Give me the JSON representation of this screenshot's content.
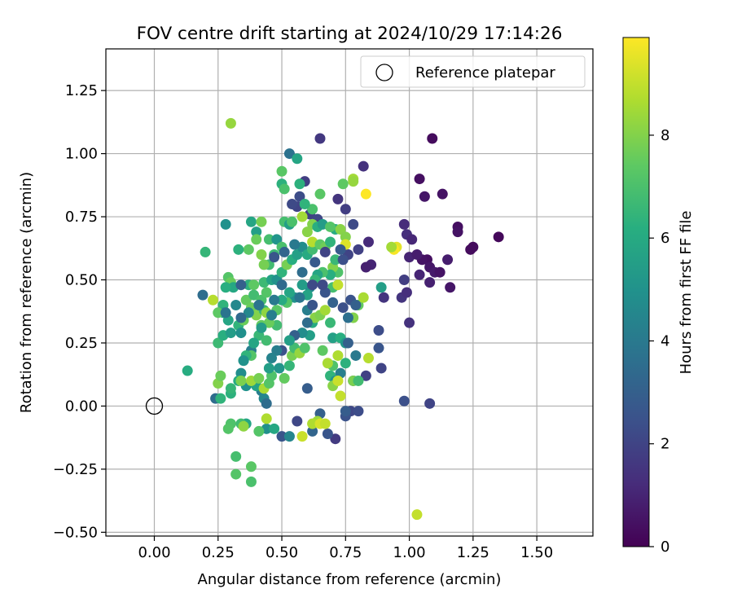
{
  "chart_data": {
    "type": "scatter",
    "title": "FOV centre drift starting at 2024/10/29 17:14:26",
    "xlabel": "Angular distance from reference (arcmin)",
    "ylabel": "Rotation from reference (arcmin)",
    "xlim": [
      -0.19,
      1.72
    ],
    "ylim": [
      -0.515,
      1.415
    ],
    "xticks": [
      0.0,
      0.25,
      0.5,
      0.75,
      1.0,
      1.25,
      1.5
    ],
    "xtick_labels": [
      "0.00",
      "0.25",
      "0.50",
      "0.75",
      "1.00",
      "1.25",
      "1.50"
    ],
    "yticks": [
      -0.5,
      -0.25,
      0.0,
      0.25,
      0.5,
      0.75,
      1.0,
      1.25
    ],
    "ytick_labels": [
      "−0.50",
      "−0.25",
      "0.00",
      "0.25",
      "0.50",
      "0.75",
      "1.00",
      "1.25"
    ],
    "grid": true,
    "legend": {
      "placement": "top-right",
      "entries": [
        "Reference platepar"
      ]
    },
    "reference_point": {
      "x": 0.0,
      "y": 0.0
    },
    "colorbar": {
      "label": "Hours from first FF file",
      "colormap": "viridis",
      "range": [
        0,
        9.9
      ],
      "ticks": [
        0,
        2,
        4,
        6,
        8
      ],
      "tick_labels": [
        "0",
        "2",
        "4",
        "6",
        "8"
      ]
    },
    "points": [
      [
        1.09,
        1.06,
        0.3
      ],
      [
        1.13,
        0.84,
        0.5
      ],
      [
        1.06,
        0.83,
        0.6
      ],
      [
        1.04,
        0.9,
        0.4
      ],
      [
        1.35,
        0.67,
        0.2
      ],
      [
        1.25,
        0.63,
        0.3
      ],
      [
        1.24,
        0.62,
        0.3
      ],
      [
        1.19,
        0.71,
        0.4
      ],
      [
        1.19,
        0.69,
        0.5
      ],
      [
        1.07,
        0.58,
        0.4
      ],
      [
        1.05,
        0.58,
        0.5
      ],
      [
        1.08,
        0.55,
        0.6
      ],
      [
        1.1,
        0.53,
        0.7
      ],
      [
        1.12,
        0.53,
        0.5
      ],
      [
        1.15,
        0.58,
        0.8
      ],
      [
        1.16,
        0.47,
        0.6
      ],
      [
        1.08,
        0.49,
        0.9
      ],
      [
        1.04,
        0.52,
        1.0
      ],
      [
        1.0,
        0.59,
        1.0
      ],
      [
        1.03,
        0.6,
        0.8
      ],
      [
        0.98,
        0.72,
        1.2
      ],
      [
        0.99,
        0.68,
        1.3
      ],
      [
        1.01,
        0.66,
        1.1
      ],
      [
        0.97,
        0.43,
        1.5
      ],
      [
        0.99,
        0.45,
        1.3
      ],
      [
        0.98,
        0.5,
        1.8
      ],
      [
        0.9,
        0.43,
        1.5
      ],
      [
        0.85,
        0.56,
        1.0
      ],
      [
        0.83,
        0.55,
        0.9
      ],
      [
        0.84,
        0.65,
        1.2
      ],
      [
        0.82,
        0.95,
        1.4
      ],
      [
        0.72,
        0.82,
        1.5
      ],
      [
        0.75,
        0.78,
        1.8
      ],
      [
        0.78,
        0.72,
        2.2
      ],
      [
        0.8,
        0.62,
        1.9
      ],
      [
        0.76,
        0.6,
        2.0
      ],
      [
        0.65,
        1.06,
        1.6
      ],
      [
        0.59,
        0.89,
        1.8
      ],
      [
        0.61,
        0.76,
        1.9
      ],
      [
        0.64,
        0.74,
        2.1
      ],
      [
        0.56,
        0.79,
        2.0
      ],
      [
        0.57,
        0.83,
        2.3
      ],
      [
        0.54,
        0.8,
        2.2
      ],
      [
        0.53,
        1.0,
        3.7
      ],
      [
        0.56,
        0.98,
        5.8
      ],
      [
        1.0,
        0.33,
        1.4
      ],
      [
        1.08,
        0.01,
        2.0
      ],
      [
        0.98,
        0.02,
        2.4
      ],
      [
        0.88,
        0.3,
        2.3
      ],
      [
        0.88,
        0.23,
        2.6
      ],
      [
        0.89,
        0.15,
        2.0
      ],
      [
        0.83,
        0.12,
        1.9
      ],
      [
        0.78,
        0.1,
        2.2
      ],
      [
        0.77,
        -0.02,
        2.1
      ],
      [
        0.8,
        -0.02,
        2.3
      ],
      [
        0.75,
        -0.04,
        2.5
      ],
      [
        0.75,
        -0.02,
        2.9
      ],
      [
        0.71,
        -0.13,
        1.7
      ],
      [
        0.68,
        -0.11,
        2.6
      ],
      [
        0.65,
        -0.03,
        3.0
      ],
      [
        0.6,
        0.07,
        2.9
      ],
      [
        0.62,
        -0.1,
        3.2
      ],
      [
        0.56,
        -0.06,
        2.1
      ],
      [
        0.5,
        -0.12,
        2.6
      ],
      [
        0.53,
        -0.12,
        4.5
      ],
      [
        0.44,
        -0.09,
        4.9
      ],
      [
        0.44,
        -0.05,
        8.7
      ],
      [
        0.42,
        0.06,
        4.2
      ],
      [
        0.43,
        0.03,
        4.5
      ],
      [
        0.44,
        0.01,
        3.5
      ],
      [
        0.4,
        0.08,
        5.7
      ],
      [
        0.38,
        0.22,
        4.2
      ],
      [
        0.36,
        0.08,
        5.0
      ],
      [
        0.34,
        0.13,
        4.8
      ],
      [
        0.35,
        0.18,
        5.8
      ],
      [
        0.33,
        0.1,
        6.0
      ],
      [
        0.3,
        0.05,
        6.3
      ],
      [
        0.3,
        0.07,
        6.5
      ],
      [
        0.24,
        0.03,
        3.5
      ],
      [
        0.26,
        0.03,
        6.4
      ],
      [
        0.25,
        0.09,
        8.0
      ],
      [
        0.26,
        0.12,
        7.6
      ],
      [
        0.13,
        0.14,
        6.1
      ],
      [
        0.3,
        -0.07,
        7.1
      ],
      [
        0.29,
        -0.09,
        7.2
      ],
      [
        0.32,
        -0.2,
        6.9
      ],
      [
        0.32,
        -0.27,
        7.2
      ],
      [
        0.38,
        -0.24,
        7.3
      ],
      [
        0.38,
        -0.3,
        7.0
      ],
      [
        0.36,
        -0.07,
        5.8
      ],
      [
        0.34,
        -0.07,
        6.8
      ],
      [
        0.35,
        -0.08,
        8.2
      ],
      [
        0.41,
        -0.1,
        7.2
      ],
      [
        0.47,
        -0.09,
        5.9
      ],
      [
        0.64,
        -0.06,
        8.4
      ],
      [
        0.62,
        -0.07,
        8.7
      ],
      [
        0.65,
        -0.07,
        9.3
      ],
      [
        0.67,
        -0.07,
        9.0
      ],
      [
        0.58,
        -0.12,
        9.1
      ],
      [
        1.03,
        -0.43,
        9.0
      ],
      [
        0.3,
        1.12,
        8.3
      ],
      [
        0.2,
        0.61,
        6.5
      ],
      [
        0.19,
        0.44,
        3.5
      ],
      [
        0.23,
        0.42,
        8.8
      ],
      [
        0.28,
        0.72,
        5.0
      ],
      [
        0.38,
        0.73,
        5.8
      ],
      [
        0.42,
        0.73,
        7.8
      ],
      [
        0.4,
        0.69,
        5.5
      ],
      [
        0.4,
        0.66,
        7.6
      ],
      [
        0.45,
        0.66,
        6.9
      ],
      [
        0.48,
        0.66,
        5.1
      ],
      [
        0.51,
        0.73,
        6.9
      ],
      [
        0.53,
        0.72,
        5.5
      ],
      [
        0.47,
        0.6,
        6.7
      ],
      [
        0.5,
        0.63,
        7.0
      ],
      [
        0.45,
        0.56,
        6.8
      ],
      [
        0.43,
        0.56,
        7.8
      ],
      [
        0.42,
        0.6,
        8.0
      ],
      [
        0.37,
        0.62,
        7.4
      ],
      [
        0.33,
        0.62,
        6.3
      ],
      [
        0.29,
        0.51,
        7.2
      ],
      [
        0.3,
        0.49,
        7.6
      ],
      [
        0.31,
        0.47,
        5.9
      ],
      [
        0.28,
        0.47,
        6.2
      ],
      [
        0.27,
        0.4,
        6.4
      ],
      [
        0.27,
        0.37,
        5.8
      ],
      [
        0.25,
        0.37,
        7.4
      ],
      [
        0.25,
        0.25,
        6.7
      ],
      [
        0.27,
        0.28,
        6.2
      ],
      [
        0.3,
        0.29,
        5.4
      ],
      [
        0.29,
        0.34,
        5.8
      ],
      [
        0.33,
        0.32,
        6.4
      ],
      [
        0.34,
        0.29,
        4.9
      ],
      [
        0.35,
        0.34,
        7.6
      ],
      [
        0.36,
        0.42,
        7.5
      ],
      [
        0.37,
        0.48,
        6.3
      ],
      [
        0.39,
        0.48,
        7.4
      ],
      [
        0.39,
        0.44,
        6.8
      ],
      [
        0.38,
        0.39,
        7.6
      ],
      [
        0.4,
        0.36,
        8.0
      ],
      [
        0.42,
        0.42,
        7.0
      ],
      [
        0.43,
        0.38,
        6.5
      ],
      [
        0.44,
        0.45,
        7.2
      ],
      [
        0.43,
        0.49,
        6.7
      ],
      [
        0.46,
        0.5,
        5.7
      ],
      [
        0.48,
        0.5,
        5.0
      ],
      [
        0.5,
        0.53,
        6.4
      ],
      [
        0.52,
        0.56,
        7.8
      ],
      [
        0.54,
        0.58,
        6.2
      ],
      [
        0.56,
        0.6,
        5.6
      ],
      [
        0.58,
        0.63,
        4.8
      ],
      [
        0.6,
        0.6,
        6.0
      ],
      [
        0.62,
        0.62,
        6.8
      ],
      [
        0.62,
        0.65,
        8.8
      ],
      [
        0.6,
        0.69,
        8.1
      ],
      [
        0.65,
        0.64,
        7.4
      ],
      [
        0.67,
        0.63,
        7.7
      ],
      [
        0.69,
        0.65,
        6.4
      ],
      [
        0.71,
        0.7,
        6.1
      ],
      [
        0.73,
        0.7,
        8.1
      ],
      [
        0.75,
        0.67,
        8.0
      ],
      [
        0.75,
        0.64,
        9.4
      ],
      [
        0.72,
        0.53,
        7.1
      ],
      [
        0.7,
        0.55,
        8.0
      ],
      [
        0.7,
        0.47,
        6.9
      ],
      [
        0.72,
        0.48,
        9.0
      ],
      [
        0.71,
        0.58,
        6.6
      ],
      [
        0.69,
        0.52,
        6.2
      ],
      [
        0.66,
        0.53,
        7.0
      ],
      [
        0.64,
        0.52,
        5.8
      ],
      [
        0.63,
        0.5,
        6.5
      ],
      [
        0.61,
        0.47,
        4.8
      ],
      [
        0.6,
        0.44,
        5.7
      ],
      [
        0.58,
        0.48,
        5.4
      ],
      [
        0.57,
        0.43,
        6.1
      ],
      [
        0.55,
        0.43,
        5.0
      ],
      [
        0.53,
        0.45,
        5.8
      ],
      [
        0.52,
        0.41,
        7.2
      ],
      [
        0.5,
        0.42,
        6.0
      ],
      [
        0.48,
        0.38,
        7.3
      ],
      [
        0.48,
        0.32,
        6.8
      ],
      [
        0.45,
        0.33,
        7.6
      ],
      [
        0.44,
        0.37,
        8.2
      ],
      [
        0.42,
        0.32,
        7.5
      ],
      [
        0.41,
        0.28,
        6.6
      ],
      [
        0.39,
        0.25,
        5.8
      ],
      [
        0.38,
        0.2,
        7.2
      ],
      [
        0.36,
        0.2,
        6.4
      ],
      [
        0.35,
        0.18,
        5.0
      ],
      [
        0.34,
        0.1,
        7.9
      ],
      [
        0.38,
        0.1,
        8.4
      ],
      [
        0.41,
        0.11,
        7.8
      ],
      [
        0.43,
        0.07,
        8.6
      ],
      [
        0.45,
        0.09,
        7.2
      ],
      [
        0.46,
        0.12,
        7.1
      ],
      [
        0.49,
        0.15,
        5.1
      ],
      [
        0.51,
        0.11,
        7.5
      ],
      [
        0.53,
        0.16,
        6.5
      ],
      [
        0.54,
        0.2,
        7.8
      ],
      [
        0.55,
        0.23,
        6.8
      ],
      [
        0.57,
        0.21,
        8.3
      ],
      [
        0.59,
        0.23,
        7.1
      ],
      [
        0.61,
        0.28,
        5.5
      ],
      [
        0.62,
        0.33,
        6.0
      ],
      [
        0.63,
        0.35,
        8.1
      ],
      [
        0.65,
        0.36,
        7.9
      ],
      [
        0.67,
        0.38,
        8.5
      ],
      [
        0.69,
        0.33,
        6.6
      ],
      [
        0.7,
        0.27,
        5.6
      ],
      [
        0.73,
        0.27,
        6.2
      ],
      [
        0.75,
        0.25,
        5.2
      ],
      [
        0.76,
        0.25,
        3.0
      ],
      [
        0.72,
        0.2,
        8.7
      ],
      [
        0.75,
        0.17,
        6.3
      ],
      [
        0.7,
        0.16,
        7.1
      ],
      [
        0.68,
        0.17,
        8.6
      ],
      [
        0.66,
        0.22,
        7.4
      ],
      [
        0.69,
        0.12,
        6.4
      ],
      [
        0.71,
        0.1,
        5.0
      ],
      [
        0.73,
        0.13,
        4.2
      ],
      [
        0.7,
        0.08,
        8.1
      ],
      [
        0.72,
        0.1,
        9.1
      ],
      [
        0.73,
        0.04,
        9.0
      ],
      [
        0.78,
        0.1,
        7.9
      ],
      [
        0.8,
        0.1,
        6.8
      ],
      [
        0.78,
        0.35,
        8.0
      ],
      [
        0.8,
        0.4,
        7.5
      ],
      [
        0.77,
        0.42,
        2.5
      ],
      [
        0.79,
        0.4,
        3.0
      ],
      [
        0.82,
        0.43,
        8.6
      ],
      [
        0.84,
        0.19,
        8.8
      ],
      [
        0.89,
        0.47,
        5.5
      ],
      [
        0.95,
        0.63,
        9.5
      ],
      [
        0.94,
        0.62,
        9.8
      ],
      [
        0.93,
        0.63,
        8.5
      ],
      [
        0.83,
        0.84,
        9.9
      ],
      [
        0.78,
        0.9,
        8.5
      ],
      [
        0.78,
        0.89,
        8.3
      ],
      [
        0.74,
        0.88,
        7.4
      ],
      [
        0.65,
        0.84,
        7.3
      ],
      [
        0.62,
        0.78,
        7.0
      ],
      [
        0.59,
        0.8,
        6.4
      ],
      [
        0.58,
        0.75,
        8.5
      ],
      [
        0.62,
        0.72,
        8.0
      ],
      [
        0.64,
        0.71,
        6.2
      ],
      [
        0.66,
        0.72,
        5.4
      ],
      [
        0.69,
        0.71,
        7.2
      ],
      [
        0.54,
        0.73,
        7.0
      ],
      [
        0.5,
        0.93,
        7.3
      ],
      [
        0.5,
        0.88,
        6.3
      ],
      [
        0.51,
        0.86,
        7.0
      ],
      [
        0.57,
        0.88,
        6.3
      ],
      [
        0.57,
        0.43,
        3.8
      ],
      [
        0.6,
        0.38,
        4.2
      ],
      [
        0.62,
        0.4,
        2.6
      ],
      [
        0.6,
        0.33,
        3.5
      ],
      [
        0.58,
        0.29,
        4.8
      ],
      [
        0.55,
        0.28,
        3.0
      ],
      [
        0.53,
        0.26,
        5.5
      ],
      [
        0.5,
        0.22,
        2.5
      ],
      [
        0.48,
        0.22,
        4.2
      ],
      [
        0.46,
        0.19,
        4.4
      ],
      [
        0.45,
        0.15,
        5.5
      ],
      [
        0.44,
        0.26,
        6.8
      ],
      [
        0.42,
        0.31,
        5.4
      ],
      [
        0.47,
        0.42,
        4.0
      ],
      [
        0.5,
        0.48,
        3.4
      ],
      [
        0.46,
        0.36,
        4.2
      ],
      [
        0.41,
        0.4,
        3.8
      ],
      [
        0.37,
        0.37,
        4.6
      ],
      [
        0.34,
        0.35,
        3.4
      ],
      [
        0.32,
        0.4,
        4.6
      ],
      [
        0.34,
        0.48,
        3.0
      ],
      [
        0.28,
        0.37,
        3.8
      ],
      [
        0.47,
        0.59,
        2.6
      ],
      [
        0.51,
        0.61,
        3.2
      ],
      [
        0.55,
        0.64,
        4.0
      ],
      [
        0.58,
        0.53,
        3.5
      ],
      [
        0.62,
        0.48,
        2.2
      ],
      [
        0.67,
        0.45,
        2.6
      ],
      [
        0.66,
        0.48,
        2.2
      ],
      [
        0.7,
        0.41,
        3.1
      ],
      [
        0.74,
        0.39,
        2.4
      ],
      [
        0.76,
        0.35,
        3.6
      ],
      [
        0.79,
        0.2,
        4.0
      ],
      [
        0.67,
        0.61,
        2.0
      ],
      [
        0.73,
        0.62,
        2.8
      ],
      [
        0.74,
        0.58,
        2.4
      ],
      [
        0.63,
        0.57,
        2.8
      ]
    ]
  }
}
